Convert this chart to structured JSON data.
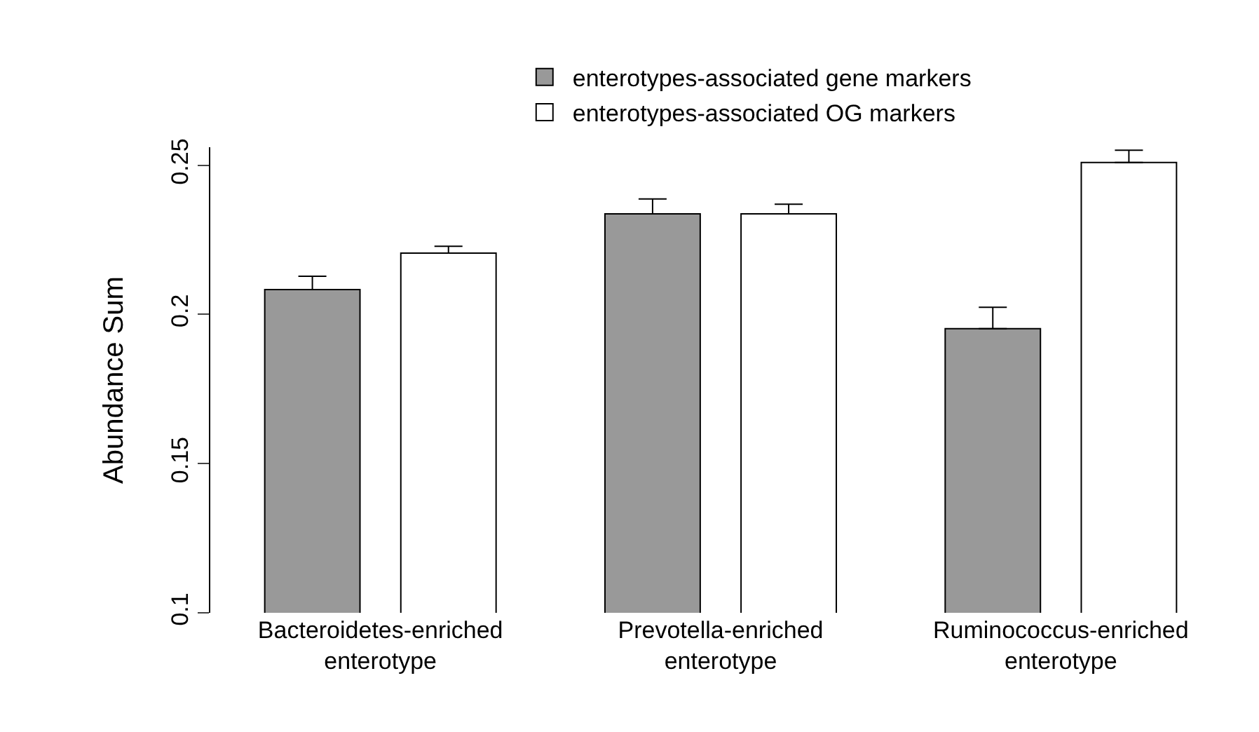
{
  "chart_data": {
    "type": "bar",
    "ylabel": "Abundance Sum",
    "categories": [
      "Bacteroidetes-enriched\nenterotype",
      "Prevotella-enriched\nenterotype",
      "Ruminococcus-enriched\nenterotype"
    ],
    "series": [
      {
        "name": "enterotypes-associated gene markers",
        "color": "#999999",
        "values": [
          0.2083,
          0.2337,
          0.1952
        ],
        "errors": [
          [
            0.2083,
            0.2128
          ],
          [
            0.2337,
            0.2387
          ],
          [
            0.1952,
            0.2024
          ]
        ]
      },
      {
        "name": "enterotypes-associated OG markers",
        "color": "#ffffff",
        "values": [
          0.2205,
          0.2337,
          0.2509
        ],
        "errors": [
          [
            0.2205,
            0.2228
          ],
          [
            0.2337,
            0.2369
          ],
          [
            0.2509,
            0.255
          ]
        ]
      }
    ],
    "ylim": [
      0.1,
      0.256
    ],
    "yticks": [
      0.1,
      0.15,
      0.2,
      0.25
    ],
    "grid": false,
    "legend": "top"
  }
}
